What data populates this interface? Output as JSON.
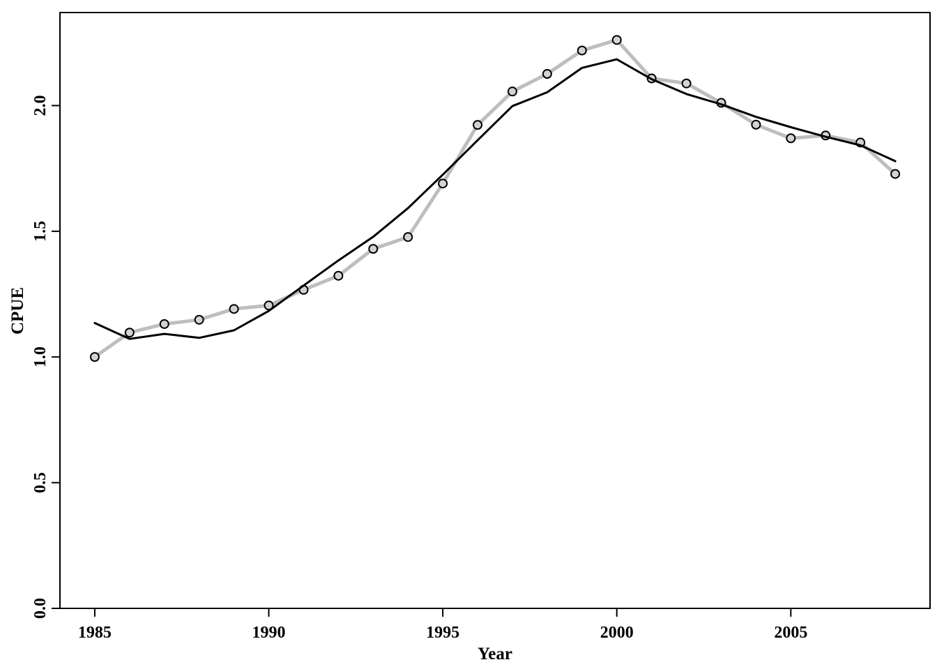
{
  "chart_data": {
    "type": "line",
    "title": "",
    "xlabel": "Year",
    "ylabel": "CPUE",
    "xlim": [
      1984.0,
      2009.0
    ],
    "ylim": [
      0.0,
      2.37
    ],
    "x_ticks": [
      "1985",
      "1990",
      "1995",
      "2000",
      "2005"
    ],
    "y_ticks": [
      "0.0",
      "0.5",
      "1.0",
      "1.5",
      "2.0"
    ],
    "grid": false,
    "legend": "none",
    "x": [
      1985,
      1986,
      1987,
      1988,
      1989,
      1990,
      1991,
      1992,
      1993,
      1994,
      1995,
      1996,
      1997,
      1998,
      1999,
      2000,
      2001,
      2002,
      2003,
      2004,
      2005,
      2006,
      2007,
      2008
    ],
    "series": [
      {
        "style": "observed",
        "color": "#bebebe",
        "marker": "circle",
        "values": [
          1.0,
          1.097,
          1.131,
          1.148,
          1.191,
          1.205,
          1.267,
          1.323,
          1.43,
          1.477,
          1.69,
          1.923,
          2.056,
          2.126,
          2.219,
          2.261,
          2.108,
          2.088,
          2.011,
          1.924,
          1.87,
          1.881,
          1.853,
          1.728
        ]
      },
      {
        "style": "fitted",
        "color": "#000000",
        "marker": "none",
        "values": [
          1.135,
          1.072,
          1.092,
          1.076,
          1.106,
          1.183,
          1.284,
          1.384,
          1.478,
          1.592,
          1.725,
          1.862,
          1.998,
          2.053,
          2.15,
          2.184,
          2.105,
          2.046,
          2.005,
          1.955,
          1.914,
          1.876,
          1.842,
          1.779
        ]
      }
    ]
  }
}
